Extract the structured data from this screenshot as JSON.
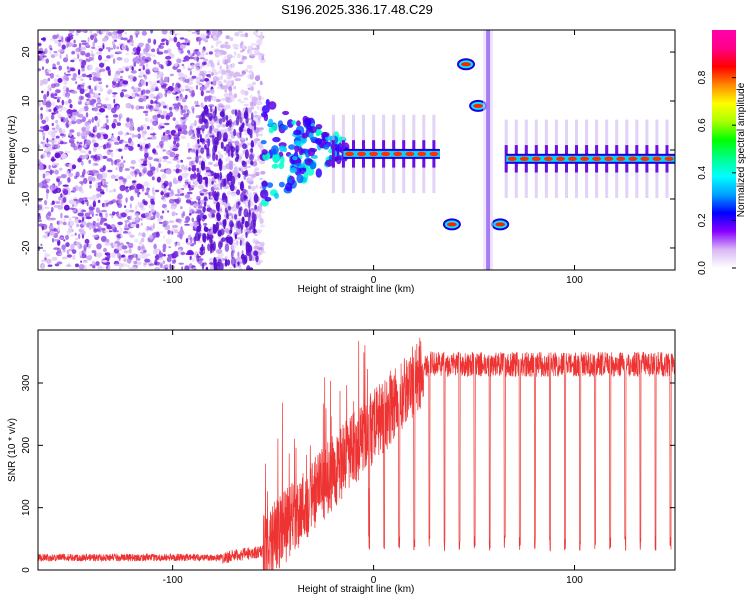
{
  "figure": {
    "title": "S196.2025.336.17.48.C29"
  },
  "chart_data": [
    {
      "type": "heatmap",
      "name": "spectrogram",
      "title": "S196.2025.336.17.48.C29",
      "xlabel": "Height of straight line (km)",
      "ylabel": "Frequency (Hz)",
      "xlim": [
        -167,
        150
      ],
      "ylim": [
        -24.5,
        24.5
      ],
      "xticks": [
        -100,
        0,
        100
      ],
      "yticks": [
        -20,
        -10,
        0,
        10,
        20
      ],
      "colorbar": {
        "label": "Normalized spectral amplitude",
        "range": [
          0.0,
          1.0
        ],
        "ticks": [
          "0.0",
          "0.2",
          "0.4",
          "0.6",
          "0.8"
        ],
        "colors": [
          "#ffffff",
          "#d9b8f5",
          "#8800ff",
          "#0000ff",
          "#00a0ff",
          "#00ffff",
          "#00ff88",
          "#00ff00",
          "#aaff00",
          "#ffff00",
          "#ff8800",
          "#ff0000",
          "#ff0088",
          "#ff00aa"
        ]
      },
      "features": {
        "noise_region_km": [
          -167,
          -55
        ],
        "main_line_freq_hz_segment1": -0.8,
        "main_line_km_segment1": [
          -15,
          33
        ],
        "main_line_freq_hz_segment2": -1.8,
        "main_line_km_segment2": [
          66,
          150
        ],
        "side_peaks": [
          {
            "x": 39,
            "y": -15.2
          },
          {
            "x": 46,
            "y": 17.5
          },
          {
            "x": 52,
            "y": 9
          },
          {
            "x": 63,
            "y": -15.2
          }
        ]
      }
    },
    {
      "type": "line",
      "name": "snr",
      "xlabel": "Height of straight line (km)",
      "ylabel": "SNR (10 * v/v)",
      "xlim": [
        -167,
        150
      ],
      "ylim": [
        0,
        385
      ],
      "xticks": [
        -100,
        0,
        100
      ],
      "yticks": [
        0,
        100,
        200,
        300
      ],
      "color": "#ee3333",
      "profile": {
        "baseline_low_km": [
          -167,
          -80
        ],
        "baseline_low_value": 20,
        "rise_start_km": -55,
        "plateau_start_km": 25,
        "plateau_value": 340,
        "periodic_dip_value": 30,
        "periodic_dip_spacing_km": 7.5
      }
    }
  ]
}
